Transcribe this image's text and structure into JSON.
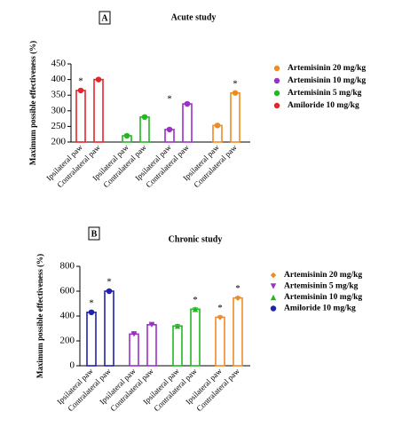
{
  "chart_data": [
    {
      "type": "bar",
      "panel": "A",
      "title": "Acute study",
      "y_label": "Maximum possible effectiveness (%)",
      "categories": [
        "Ipsilateral paw",
        "Contralateral paw"
      ],
      "ylim": [
        200,
        450
      ],
      "yticks": [
        200,
        250,
        300,
        350,
        400,
        450
      ],
      "legend_order": [
        3,
        2,
        1,
        0
      ],
      "series": [
        {
          "name": "Amiloride 10 mg/kg",
          "color": "#e3262b",
          "marker": "circle",
          "values": [
            365,
            400
          ],
          "value_annotations": [
            "*",
            null
          ]
        },
        {
          "name": "Artemisinin 5 mg/kg",
          "color": "#22b822",
          "marker": "circle",
          "values": [
            220,
            280
          ],
          "value_annotations": [
            null,
            null
          ]
        },
        {
          "name": "Artemisinin 10 mg/kg",
          "color": "#9b30c8",
          "marker": "circle",
          "values": [
            240,
            322
          ],
          "value_annotations": [
            "*",
            null
          ]
        },
        {
          "name": "Artemisinin 20 mg/kg",
          "color": "#f08a24",
          "marker": "circle",
          "values": [
            253,
            357
          ],
          "value_annotations": [
            null,
            "*"
          ]
        }
      ]
    },
    {
      "type": "bar",
      "panel": "B",
      "title": "Chronic study",
      "y_label": "Maximum possible effectiveness (%)",
      "categories": [
        "Ipsilateral paw",
        "Contralateral paw"
      ],
      "ylim": [
        0,
        800
      ],
      "yticks": [
        0,
        200,
        400,
        600,
        800
      ],
      "legend_order": [
        3,
        1,
        2,
        0
      ],
      "series": [
        {
          "name": "Amiloride 10 mg/kg",
          "color": "#1f22b0",
          "marker": "circle",
          "values": [
            430,
            600
          ],
          "value_annotations": [
            "*",
            "*"
          ]
        },
        {
          "name": "Artemisinin 5 mg/kg",
          "color": "#9b30c8",
          "marker": "triangle-down",
          "values": [
            255,
            330
          ],
          "value_annotations": [
            null,
            null
          ]
        },
        {
          "name": "Artemisinin 10 mg/kg",
          "color": "#22b822",
          "marker": "triangle-up",
          "values": [
            320,
            455
          ],
          "value_annotations": [
            null,
            "*"
          ]
        },
        {
          "name": "Artemisinin 20 mg/kg",
          "color": "#f08a24",
          "marker": "diamond",
          "values": [
            390,
            545
          ],
          "value_annotations": [
            "*",
            "*"
          ]
        }
      ]
    }
  ]
}
